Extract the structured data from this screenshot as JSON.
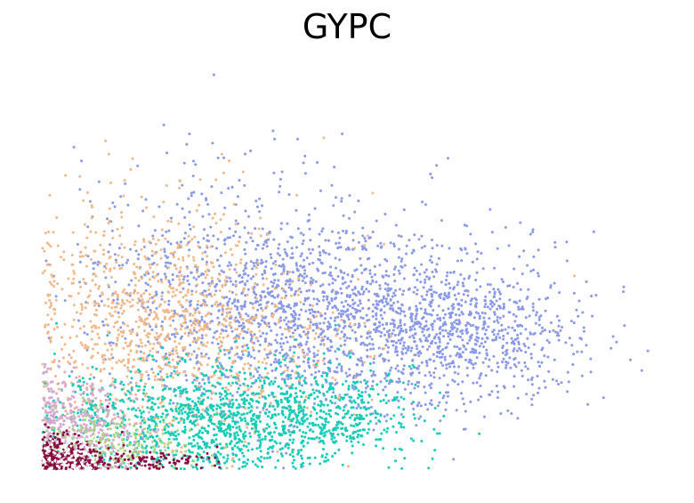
{
  "chart_data": {
    "type": "scatter",
    "title": "GYPC",
    "xlabel": "",
    "ylabel": "",
    "axes_visible": false,
    "grid": false,
    "legend": "none",
    "marker_radius_note": "small dots",
    "series": [
      {
        "color": "#8a99e6",
        "clusters": [
          {
            "cx": 0.45,
            "cy": 0.38,
            "sx": 0.16,
            "sy": 0.12,
            "n": 1500
          },
          {
            "cx": 0.7,
            "cy": 0.34,
            "sx": 0.1,
            "sy": 0.09,
            "n": 650
          },
          {
            "cx": 0.3,
            "cy": 0.5,
            "sx": 0.12,
            "sy": 0.15,
            "n": 400
          }
        ],
        "outliers": [
          [
            0.28,
            1.0
          ],
          [
            0.24,
            0.85
          ],
          [
            0.49,
            0.85
          ],
          [
            0.99,
            0.3
          ],
          [
            0.98,
            0.25
          ],
          [
            0.95,
            0.45
          ]
        ]
      },
      {
        "color": "#f1b88a",
        "clusters": [
          {
            "cx": 0.18,
            "cy": 0.38,
            "sx": 0.1,
            "sy": 0.15,
            "n": 800
          },
          {
            "cx": 0.3,
            "cy": 0.3,
            "sx": 0.12,
            "sy": 0.12,
            "n": 300
          }
        ],
        "outliers": [
          [
            0.0,
            0.56
          ],
          [
            0.46,
            0.84
          ],
          [
            0.54,
            0.7
          ],
          [
            0.87,
            0.49
          ],
          [
            0.05,
            0.6
          ]
        ]
      },
      {
        "color": "#14cdb8",
        "clusters": [
          {
            "cx": 0.28,
            "cy": 0.12,
            "sx": 0.13,
            "sy": 0.07,
            "n": 1100
          },
          {
            "cx": 0.45,
            "cy": 0.15,
            "sx": 0.08,
            "sy": 0.06,
            "n": 350
          }
        ],
        "outliers": []
      },
      {
        "color": "#d4a8cf",
        "clusters": [
          {
            "cx": 0.06,
            "cy": 0.1,
            "sx": 0.05,
            "sy": 0.07,
            "n": 450
          }
        ],
        "outliers": []
      },
      {
        "color": "#a8d67e",
        "clusters": [
          {
            "cx": 0.12,
            "cy": 0.06,
            "sx": 0.07,
            "sy": 0.04,
            "n": 200
          }
        ],
        "outliers": []
      },
      {
        "color": "#8b0a3e",
        "clusters": [
          {
            "cx": 0.03,
            "cy": 0.03,
            "sx": 0.04,
            "sy": 0.03,
            "n": 260
          },
          {
            "cx": 0.15,
            "cy": 0.02,
            "sx": 0.07,
            "sy": 0.015,
            "n": 120
          }
        ],
        "outliers": []
      },
      {
        "color": "#ffffff",
        "clusters": [
          {
            "cx": 0.05,
            "cy": 0.03,
            "sx": 0.04,
            "sy": 0.03,
            "n": 120
          }
        ],
        "outliers": []
      }
    ]
  }
}
